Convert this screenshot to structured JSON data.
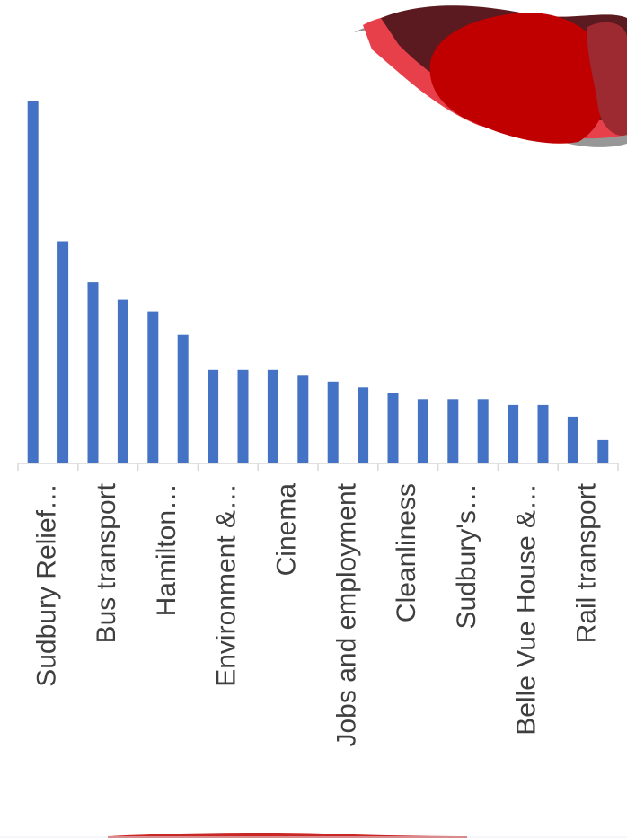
{
  "chart_data": {
    "type": "bar",
    "orientation": "vertical",
    "categories": [
      "Sudbury Relief…",
      "",
      "Bus transport",
      "",
      "Hamilton…",
      "",
      "Environment &…",
      "",
      "Cinema",
      "",
      "Jobs and employment",
      "",
      "Cleanliness",
      "",
      "Sudbury's…",
      "",
      "Belle Vue House &…",
      "",
      "Rail transport",
      ""
    ],
    "values": [
      62,
      38,
      31,
      28,
      26,
      22,
      16,
      16,
      16,
      15,
      14,
      13,
      12,
      11,
      11,
      11,
      10,
      10,
      8,
      4
    ],
    "ylim": [
      0,
      70
    ],
    "grid": false,
    "legend": "none",
    "bar_color": "#4472c4",
    "axis_color": "#d9d9d9"
  },
  "decor": {
    "logo_icon": "red-blob-logo-icon",
    "logo_colors": [
      "#c00000",
      "#e8404a",
      "#5a1a1f",
      "#8c8c8c"
    ]
  }
}
